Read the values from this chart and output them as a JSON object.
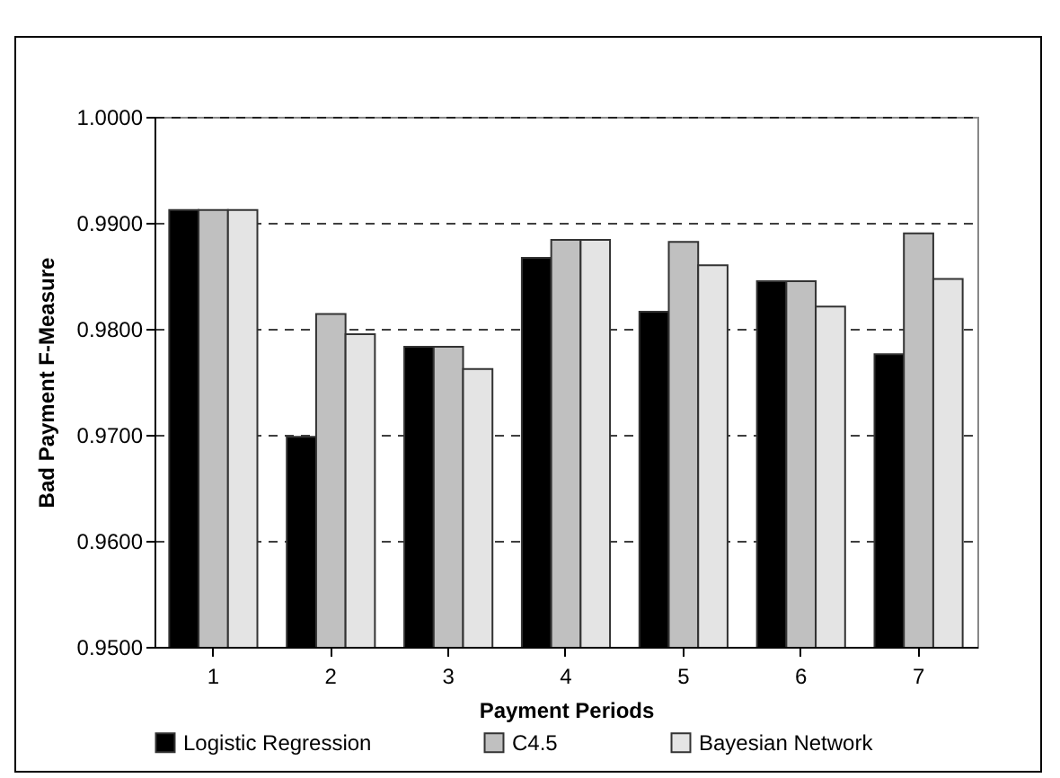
{
  "chart_data": {
    "type": "bar",
    "xlabel": "Payment Periods",
    "ylabel": "Bad Payment F-Measure",
    "categories": [
      "1",
      "2",
      "3",
      "4",
      "5",
      "6",
      "7"
    ],
    "series": [
      {
        "name": "Logistic Regression",
        "color": "#000000",
        "values": [
          0.9912,
          0.9698,
          0.9783,
          0.9867,
          0.9816,
          0.9845,
          0.9776
        ]
      },
      {
        "name": "C4.5",
        "color": "#c0c0c0",
        "values": [
          0.9912,
          0.9814,
          0.9783,
          0.9884,
          0.9882,
          0.9845,
          0.989
        ]
      },
      {
        "name": "Bayesian Network",
        "color": "#e4e4e4",
        "values": [
          0.9912,
          0.9795,
          0.9762,
          0.9884,
          0.986,
          0.9821,
          0.9847
        ]
      }
    ],
    "ylim": [
      0.95,
      1.0
    ],
    "yticks": [
      {
        "value": 0.95,
        "label": "0.9500"
      },
      {
        "value": 0.96,
        "label": "0.9600"
      },
      {
        "value": 0.97,
        "label": "0.9700"
      },
      {
        "value": 0.98,
        "label": "0.9800"
      },
      {
        "value": 0.99,
        "label": "0.9900"
      },
      {
        "value": 1.0,
        "label": "1.0000"
      }
    ],
    "grid": "y",
    "legend": "bottom"
  }
}
